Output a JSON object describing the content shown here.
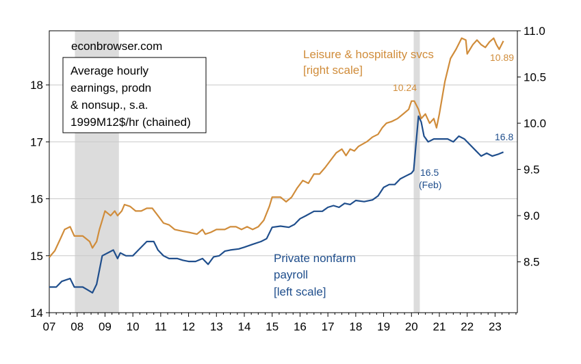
{
  "chart_data": {
    "type": "line",
    "watermark": "econbrowser.com",
    "title_box": [
      "Average hourly",
      "earnings, prodn",
      "& nonsup., s.a.",
      "1999M12$/hr (chained)"
    ],
    "x_ticks": [
      "07",
      "08",
      "09",
      "10",
      "11",
      "12",
      "13",
      "14",
      "15",
      "16",
      "17",
      "18",
      "19",
      "20",
      "21",
      "22",
      "23"
    ],
    "left_ticks": [
      "14",
      "15",
      "16",
      "17",
      "18"
    ],
    "right_ticks": [
      "8.5",
      "9.0",
      "9.5",
      "10.0",
      "10.5",
      "11.0"
    ],
    "left_ylim": [
      14,
      18.95
    ],
    "right_ylim": [
      7.95,
      11.0
    ],
    "xlim": [
      2007.0,
      2023.8
    ],
    "grid": "horizontal",
    "recessions": [
      [
        2007.92,
        2009.5
      ],
      [
        2020.08,
        2020.3
      ]
    ],
    "colors": {
      "private": "#1f4e8c",
      "leisure": "#d08c3a",
      "recession": "#dcdcdc"
    },
    "annotations": {
      "leisure_label": [
        "Leisure & hospitality svcs",
        "[right scale]"
      ],
      "private_label": [
        "Private nonfarm",
        "payroll",
        "[left scale]"
      ],
      "leisure_peak": "10.24",
      "leisure_last": "10.89",
      "private_last": "16.8",
      "private_feb": [
        "16.5",
        "(Feb)"
      ]
    },
    "series": [
      {
        "name": "Private nonfarm payroll",
        "axis": "left",
        "color": "#1f4e8c",
        "points": [
          [
            2007.0,
            14.45
          ],
          [
            2007.25,
            14.45
          ],
          [
            2007.45,
            14.55
          ],
          [
            2007.75,
            14.6
          ],
          [
            2007.9,
            14.45
          ],
          [
            2008.2,
            14.45
          ],
          [
            2008.45,
            14.38
          ],
          [
            2008.55,
            14.35
          ],
          [
            2008.7,
            14.5
          ],
          [
            2008.8,
            14.75
          ],
          [
            2008.9,
            15.0
          ],
          [
            2009.1,
            15.05
          ],
          [
            2009.3,
            15.1
          ],
          [
            2009.45,
            14.95
          ],
          [
            2009.55,
            15.05
          ],
          [
            2009.75,
            15.0
          ],
          [
            2010.0,
            15.0
          ],
          [
            2010.2,
            15.1
          ],
          [
            2010.5,
            15.25
          ],
          [
            2010.75,
            15.25
          ],
          [
            2010.9,
            15.1
          ],
          [
            2011.1,
            15.0
          ],
          [
            2011.3,
            14.95
          ],
          [
            2011.6,
            14.95
          ],
          [
            2011.8,
            14.92
          ],
          [
            2012.0,
            14.9
          ],
          [
            2012.25,
            14.9
          ],
          [
            2012.5,
            14.95
          ],
          [
            2012.7,
            14.85
          ],
          [
            2012.9,
            14.98
          ],
          [
            2013.1,
            15.0
          ],
          [
            2013.3,
            15.08
          ],
          [
            2013.5,
            15.1
          ],
          [
            2013.8,
            15.12
          ],
          [
            2014.0,
            15.15
          ],
          [
            2014.3,
            15.2
          ],
          [
            2014.6,
            15.25
          ],
          [
            2014.8,
            15.3
          ],
          [
            2015.0,
            15.5
          ],
          [
            2015.3,
            15.52
          ],
          [
            2015.6,
            15.5
          ],
          [
            2015.8,
            15.55
          ],
          [
            2016.0,
            15.65
          ],
          [
            2016.2,
            15.7
          ],
          [
            2016.5,
            15.78
          ],
          [
            2016.8,
            15.78
          ],
          [
            2017.0,
            15.85
          ],
          [
            2017.2,
            15.88
          ],
          [
            2017.4,
            15.85
          ],
          [
            2017.6,
            15.92
          ],
          [
            2017.8,
            15.9
          ],
          [
            2018.0,
            15.97
          ],
          [
            2018.3,
            15.95
          ],
          [
            2018.6,
            15.98
          ],
          [
            2018.8,
            16.05
          ],
          [
            2019.0,
            16.2
          ],
          [
            2019.2,
            16.25
          ],
          [
            2019.4,
            16.25
          ],
          [
            2019.6,
            16.35
          ],
          [
            2019.8,
            16.4
          ],
          [
            2020.0,
            16.45
          ],
          [
            2020.08,
            16.5
          ],
          [
            2020.15,
            16.9
          ],
          [
            2020.25,
            17.45
          ],
          [
            2020.35,
            17.35
          ],
          [
            2020.45,
            17.1
          ],
          [
            2020.6,
            17.0
          ],
          [
            2020.8,
            17.05
          ],
          [
            2021.0,
            17.05
          ],
          [
            2021.3,
            17.05
          ],
          [
            2021.5,
            17.0
          ],
          [
            2021.7,
            17.1
          ],
          [
            2021.9,
            17.05
          ],
          [
            2022.1,
            16.95
          ],
          [
            2022.3,
            16.85
          ],
          [
            2022.5,
            16.75
          ],
          [
            2022.7,
            16.8
          ],
          [
            2022.9,
            16.75
          ],
          [
            2023.1,
            16.78
          ],
          [
            2023.3,
            16.82
          ]
        ]
      },
      {
        "name": "Leisure & hospitality svcs",
        "axis": "right",
        "color": "#d08c3a",
        "points": [
          [
            2007.0,
            8.55
          ],
          [
            2007.2,
            8.62
          ],
          [
            2007.4,
            8.75
          ],
          [
            2007.55,
            8.85
          ],
          [
            2007.75,
            8.88
          ],
          [
            2007.9,
            8.78
          ],
          [
            2008.2,
            8.78
          ],
          [
            2008.45,
            8.72
          ],
          [
            2008.55,
            8.65
          ],
          [
            2008.7,
            8.72
          ],
          [
            2008.8,
            8.85
          ],
          [
            2008.9,
            8.95
          ],
          [
            2009.0,
            9.05
          ],
          [
            2009.2,
            9.0
          ],
          [
            2009.35,
            9.05
          ],
          [
            2009.45,
            9.0
          ],
          [
            2009.6,
            9.05
          ],
          [
            2009.7,
            9.12
          ],
          [
            2009.9,
            9.1
          ],
          [
            2010.1,
            9.05
          ],
          [
            2010.3,
            9.05
          ],
          [
            2010.5,
            9.08
          ],
          [
            2010.7,
            9.08
          ],
          [
            2010.9,
            9.0
          ],
          [
            2011.1,
            8.92
          ],
          [
            2011.3,
            8.9
          ],
          [
            2011.5,
            8.85
          ],
          [
            2011.8,
            8.83
          ],
          [
            2012.0,
            8.82
          ],
          [
            2012.3,
            8.8
          ],
          [
            2012.5,
            8.85
          ],
          [
            2012.6,
            8.8
          ],
          [
            2012.8,
            8.82
          ],
          [
            2013.0,
            8.85
          ],
          [
            2013.3,
            8.85
          ],
          [
            2013.5,
            8.88
          ],
          [
            2013.7,
            8.88
          ],
          [
            2013.9,
            8.85
          ],
          [
            2014.1,
            8.88
          ],
          [
            2014.3,
            8.85
          ],
          [
            2014.5,
            8.88
          ],
          [
            2014.7,
            8.95
          ],
          [
            2014.9,
            9.1
          ],
          [
            2015.0,
            9.2
          ],
          [
            2015.3,
            9.2
          ],
          [
            2015.5,
            9.15
          ],
          [
            2015.7,
            9.2
          ],
          [
            2015.9,
            9.3
          ],
          [
            2016.1,
            9.38
          ],
          [
            2016.3,
            9.35
          ],
          [
            2016.5,
            9.45
          ],
          [
            2016.7,
            9.45
          ],
          [
            2016.9,
            9.52
          ],
          [
            2017.1,
            9.6
          ],
          [
            2017.3,
            9.68
          ],
          [
            2017.5,
            9.72
          ],
          [
            2017.65,
            9.65
          ],
          [
            2017.8,
            9.72
          ],
          [
            2017.95,
            9.7
          ],
          [
            2018.1,
            9.75
          ],
          [
            2018.4,
            9.8
          ],
          [
            2018.6,
            9.85
          ],
          [
            2018.8,
            9.88
          ],
          [
            2018.95,
            9.95
          ],
          [
            2019.1,
            10.0
          ],
          [
            2019.3,
            10.02
          ],
          [
            2019.5,
            10.05
          ],
          [
            2019.7,
            10.1
          ],
          [
            2019.9,
            10.15
          ],
          [
            2020.0,
            10.24
          ],
          [
            2020.1,
            10.24
          ],
          [
            2020.25,
            10.15
          ],
          [
            2020.35,
            10.05
          ],
          [
            2020.5,
            10.1
          ],
          [
            2020.65,
            10.0
          ],
          [
            2020.8,
            10.05
          ],
          [
            2020.9,
            9.95
          ],
          [
            2021.0,
            10.1
          ],
          [
            2021.2,
            10.45
          ],
          [
            2021.4,
            10.7
          ],
          [
            2021.6,
            10.8
          ],
          [
            2021.8,
            10.92
          ],
          [
            2021.95,
            10.9
          ],
          [
            2022.0,
            10.75
          ],
          [
            2022.2,
            10.85
          ],
          [
            2022.35,
            10.9
          ],
          [
            2022.5,
            10.85
          ],
          [
            2022.65,
            10.82
          ],
          [
            2022.8,
            10.88
          ],
          [
            2022.95,
            10.92
          ],
          [
            2023.05,
            10.85
          ],
          [
            2023.15,
            10.8
          ],
          [
            2023.3,
            10.89
          ]
        ]
      }
    ]
  }
}
